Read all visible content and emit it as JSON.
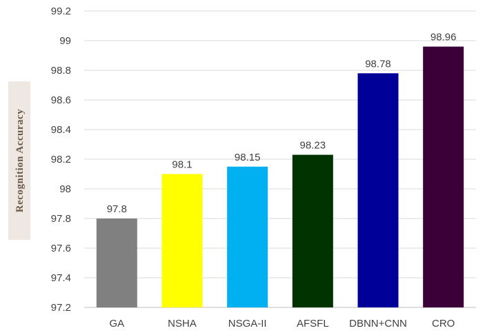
{
  "chart_data": {
    "type": "bar",
    "title": "",
    "xlabel": "",
    "ylabel": "Recognition Accuracy",
    "categories": [
      "GA",
      "NSHA",
      "NSGA-II",
      "AFSFL",
      "DBNN+CNN",
      "CRO"
    ],
    "values": [
      97.8,
      98.1,
      98.15,
      98.23,
      98.78,
      98.96
    ],
    "data_labels": [
      "97.8",
      "98.1",
      "98.15",
      "98.23",
      "98.78",
      "98.96"
    ],
    "colors": [
      "#808080",
      "#ffff00",
      "#00b0f0",
      "#003300",
      "#000099",
      "#3b0038"
    ],
    "ylim": [
      97.2,
      99.2
    ],
    "yticks": [
      "97.2",
      "97.4",
      "97.6",
      "97.8",
      "98",
      "98.2",
      "98.4",
      "98.6",
      "98.8",
      "99",
      "99.2"
    ],
    "grid": true,
    "legend": "none"
  }
}
